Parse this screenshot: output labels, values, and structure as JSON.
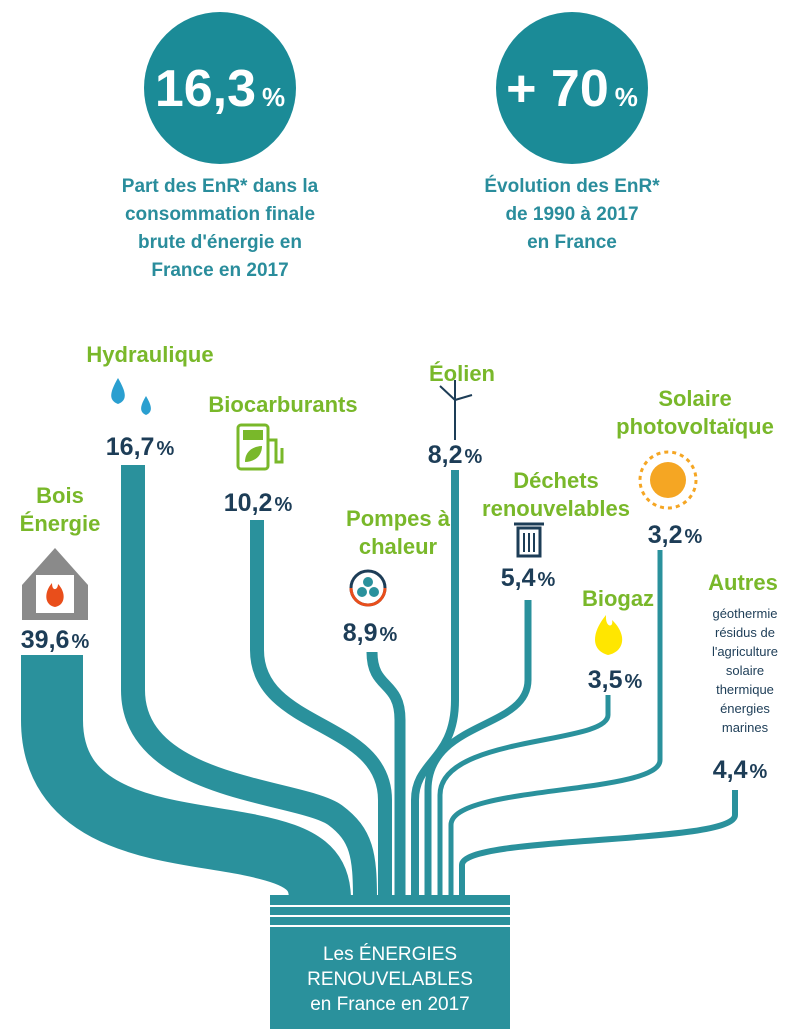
{
  "stats": [
    {
      "value": "16,3",
      "unit": "%",
      "caption": [
        "Part des EnR* dans la",
        "consommation finale",
        "brute d'énergie en",
        "France en 2017"
      ]
    },
    {
      "value": "+ 70",
      "unit": "%",
      "caption": [
        "Évolution des EnR*",
        "de 1990 à 2017",
        "en France"
      ]
    }
  ],
  "sources": [
    {
      "label": [
        "Bois",
        "Énergie"
      ],
      "value": "39,6",
      "unit": "%"
    },
    {
      "label": [
        "Hydraulique"
      ],
      "value": "16,7",
      "unit": "%"
    },
    {
      "label": [
        "Biocarburants"
      ],
      "value": "10,2",
      "unit": "%"
    },
    {
      "label": [
        "Pompes à",
        "chaleur"
      ],
      "value": "8,9",
      "unit": "%"
    },
    {
      "label": [
        "Éolien"
      ],
      "value": "8,2",
      "unit": "%"
    },
    {
      "label": [
        "Déchets",
        "renouvelables"
      ],
      "value": "5,4",
      "unit": "%"
    },
    {
      "label": [
        "Biogaz"
      ],
      "value": "3,5",
      "unit": "%"
    },
    {
      "label": [
        "Solaire",
        "photovoltaïque"
      ],
      "value": "3,2",
      "unit": "%"
    },
    {
      "label": [
        "Autres"
      ],
      "details": [
        "géothermie",
        "résidus de",
        "l'agriculture",
        "solaire",
        "thermique",
        "énergies",
        "marines"
      ],
      "value": "4,4",
      "unit": "%"
    }
  ],
  "footer": [
    "Les ÉNERGIES",
    "RENOUVELABLES",
    "en France en 2017"
  ]
}
